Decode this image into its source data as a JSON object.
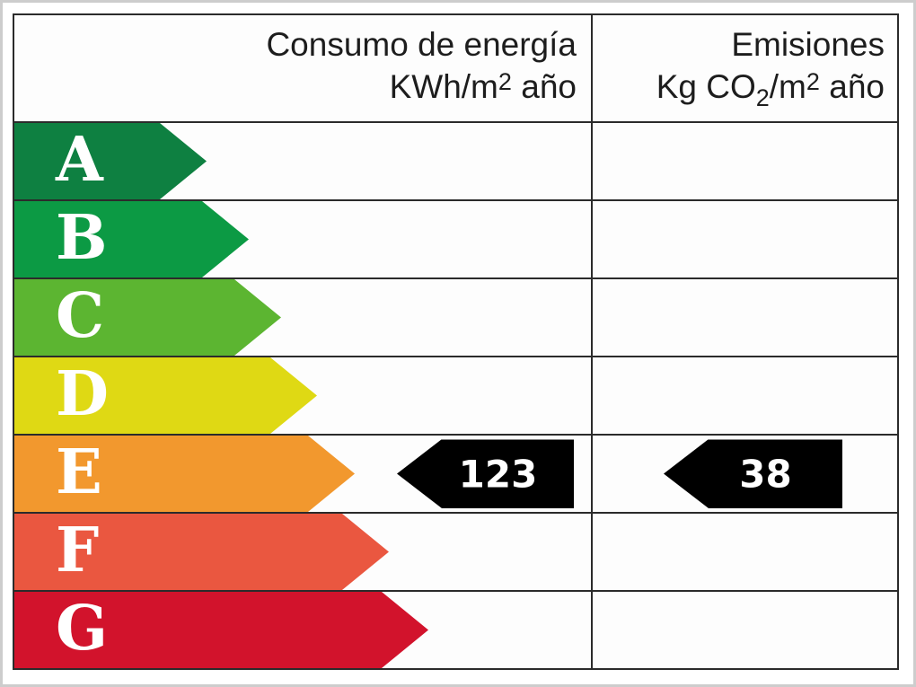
{
  "header": {
    "consumption": {
      "title": "Consumo de energía",
      "unit_prefix": "KWh/m",
      "unit_sup": "2",
      "unit_suffix": "año"
    },
    "emissions": {
      "title": "Emisiones",
      "unit_prefix": "Kg CO",
      "unit_sub": "2",
      "unit_mid": "/m",
      "unit_sup": "2",
      "unit_suffix": "año"
    }
  },
  "ratings": [
    {
      "letter": "A",
      "color": "#0e8041"
    },
    {
      "letter": "B",
      "color": "#0c9a44"
    },
    {
      "letter": "C",
      "color": "#5cb531"
    },
    {
      "letter": "D",
      "color": "#dfd914"
    },
    {
      "letter": "E",
      "color": "#f2982e"
    },
    {
      "letter": "F",
      "color": "#ea5740"
    },
    {
      "letter": "G",
      "color": "#d2132c"
    }
  ],
  "values": {
    "consumption": "123",
    "emissions": "38",
    "rating_row": "E"
  },
  "colors": {
    "grid_line": "#2b2b2b",
    "value_arrow_bg": "#000000",
    "value_arrow_text": "#ffffff",
    "letter_text": "#ffffff"
  },
  "chart_data": {
    "type": "bar",
    "categories": [
      "A",
      "B",
      "C",
      "D",
      "E",
      "F",
      "G"
    ],
    "band_colors": [
      "#0e8041",
      "#0c9a44",
      "#5cb531",
      "#dfd914",
      "#f2982e",
      "#ea5740",
      "#d2132c"
    ],
    "band_relative_lengths": [
      214,
      261,
      297,
      337,
      379,
      417,
      461
    ],
    "columns": [
      "Consumo de energía KWh/m2 año",
      "Emisiones Kg CO2/m2 año"
    ],
    "values": [
      {
        "column": "Consumo de energía KWh/m2 año",
        "value": 123,
        "rating": "E"
      },
      {
        "column": "Emisiones Kg CO2/m2 año",
        "value": 38,
        "rating": "E"
      }
    ],
    "legend_position": "none",
    "grid": true
  }
}
